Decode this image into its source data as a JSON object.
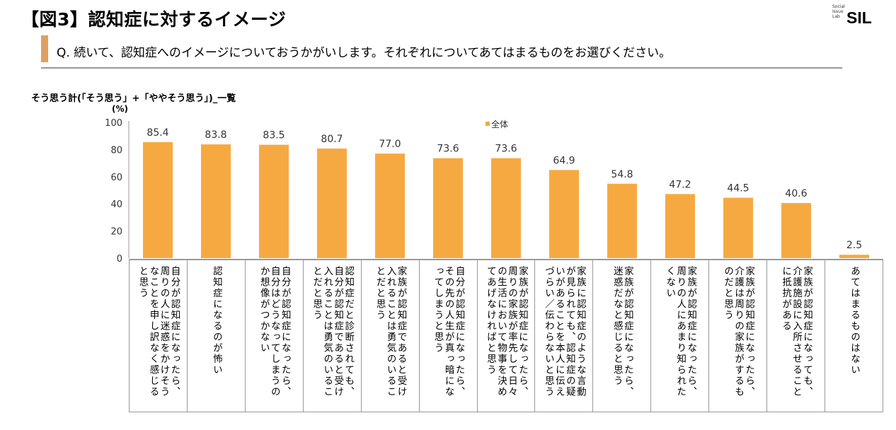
{
  "header": {
    "title": "【図3】認知症に対するイメージ",
    "logo_small": "Social Issue Lab",
    "logo_big": "SIL",
    "question": "Q. 続いて、認知症へのイメージについておうかがいします。それぞれについてあてはまるものをお選びください。"
  },
  "chart_data": {
    "type": "bar",
    "title": "そう思う計(「そう思う」+「ややそう思う」)_一覧",
    "ylabel": "(%)",
    "ylim": [
      0,
      100
    ],
    "yticks": [
      0,
      20,
      40,
      60,
      80,
      100
    ],
    "legend": "top-center",
    "color": "#f7a941",
    "series": [
      {
        "name": "全体",
        "values": [
          85.4,
          83.8,
          83.5,
          80.7,
          77.0,
          73.6,
          73.6,
          64.9,
          54.8,
          47.2,
          44.5,
          40.6,
          2.5
        ]
      }
    ],
    "value_labels": [
      "85.4",
      "83.8",
      "83.5",
      "80.7",
      "77.0",
      "73.6",
      "73.6",
      "64.9",
      "54.8",
      "47.2",
      "44.5",
      "40.6",
      "2.5"
    ],
    "categories": [
      "自分が認知症になったら、周りの人に迷惑をかけそうなことを申し訳なく感じると思う",
      "認知症になるのが怖い",
      "自分が認知症になったら、自分はどうなってしまうのか想像がつかない",
      "認知症だと診断されても、自分が認知症であると受け入れることは勇気のいることだと思う",
      "家族が認知症であると受け入れることは勇気のいることだと思う",
      "自分が認知症になったら、その先の人生が真っ暗になってしまうと思う",
      "家族が認知症になったら、周りの家族が率先して日々の生活において物事を決めてあげなければと思う",
      "家族に認知症のような言動が見られても、認知症の疑いがあることを本人に伝えづらい／伝わらないと思う",
      "家族が認知症になったら、迷惑だなと感じると思う",
      "家族が認知症になったら、周りの人にあまり知られたくない",
      "家族が認知症になったら、介護は周りの家族がするものだと思う",
      "家族が認知症になっても、介護施設に入所させることに抵抗がある",
      "あてはまるものはない"
    ]
  }
}
